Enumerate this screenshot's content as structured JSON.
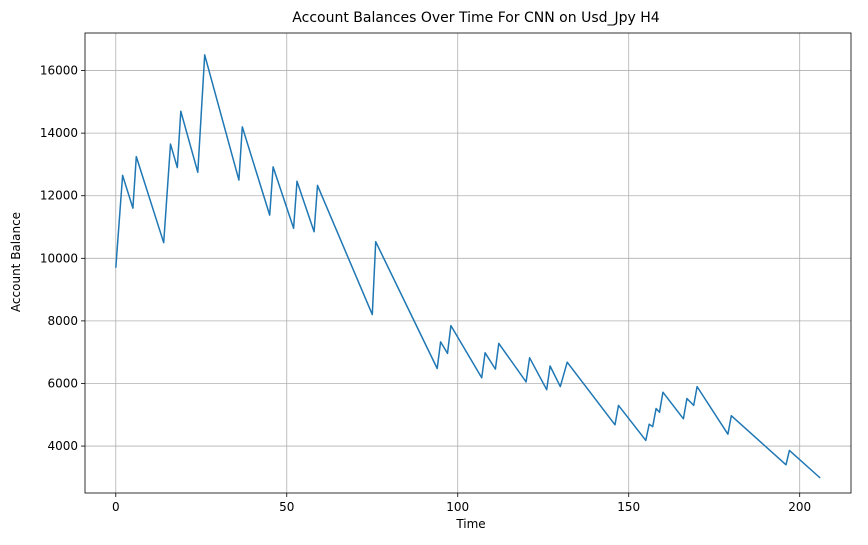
{
  "chart_data": {
    "type": "line",
    "title": "Account Balances Over Time For CNN on Usd_Jpy H4",
    "xlabel": "Time",
    "ylabel": "Account Balance",
    "xlim": [
      -9,
      215
    ],
    "ylim": [
      2500,
      17200
    ],
    "xticks": [
      0,
      50,
      100,
      150,
      200
    ],
    "yticks": [
      4000,
      6000,
      8000,
      10000,
      12000,
      14000,
      16000
    ],
    "grid": true,
    "colors": {
      "line": "#1f77b4",
      "grid": "#b0b0b0",
      "frame": "#000000"
    },
    "series": [
      {
        "points": [
          [
            0,
            9700
          ],
          [
            2,
            12650
          ],
          [
            5,
            11600
          ],
          [
            6,
            13250
          ],
          [
            14,
            10500
          ],
          [
            16,
            13650
          ],
          [
            18,
            12900
          ],
          [
            19,
            14700
          ],
          [
            24,
            12750
          ],
          [
            26,
            16500
          ],
          [
            36,
            12500
          ],
          [
            37,
            14200
          ],
          [
            45,
            11380
          ],
          [
            46,
            12920
          ],
          [
            52,
            10960
          ],
          [
            53,
            12460
          ],
          [
            58,
            10850
          ],
          [
            59,
            12330
          ],
          [
            75,
            8200
          ],
          [
            76,
            10530
          ],
          [
            94,
            6480
          ],
          [
            95,
            7330
          ],
          [
            97,
            6960
          ],
          [
            98,
            7850
          ],
          [
            107,
            6180
          ],
          [
            108,
            6980
          ],
          [
            111,
            6460
          ],
          [
            112,
            7280
          ],
          [
            120,
            6050
          ],
          [
            121,
            6820
          ],
          [
            126,
            5800
          ],
          [
            127,
            6560
          ],
          [
            130,
            5900
          ],
          [
            132,
            6680
          ],
          [
            146,
            4680
          ],
          [
            147,
            5300
          ],
          [
            155,
            4180
          ],
          [
            156,
            4700
          ],
          [
            157,
            4620
          ],
          [
            158,
            5200
          ],
          [
            159,
            5080
          ],
          [
            160,
            5720
          ],
          [
            166,
            4870
          ],
          [
            167,
            5520
          ],
          [
            169,
            5300
          ],
          [
            170,
            5900
          ],
          [
            179,
            4380
          ],
          [
            180,
            4970
          ],
          [
            196,
            3400
          ],
          [
            197,
            3860
          ],
          [
            206,
            2980
          ]
        ]
      }
    ]
  }
}
